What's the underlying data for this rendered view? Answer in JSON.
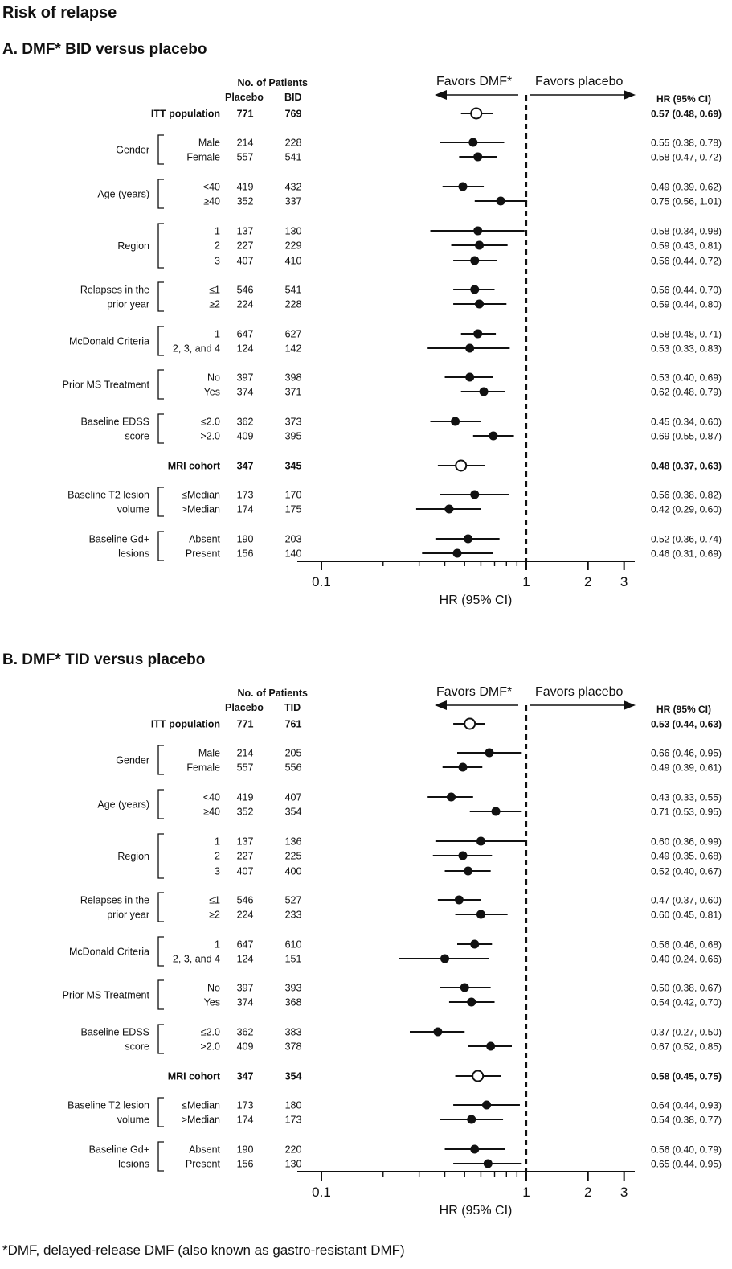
{
  "title": "Risk of relapse",
  "footnote": "*DMF, delayed-release DMF (also known as gastro-resistant DMF)",
  "chart_data": [
    {
      "type": "forest",
      "panel_title": "A. DMF* BID versus placebo",
      "patients_header": "No. of Patients",
      "col_placebo": "Placebo",
      "col_treat": "BID",
      "hr_header": "HR (95% CI)",
      "favors_left": "Favors DMF*",
      "favors_right": "Favors placebo",
      "xlabel": "HR (95% CI)",
      "xscale": "log",
      "xlim": [
        0.1,
        3
      ],
      "xticks": [
        "0.1",
        "1",
        "2",
        "3"
      ],
      "rows": [
        {
          "group": "",
          "label": "ITT population",
          "placebo": "771",
          "treat": "769",
          "hr": 0.57,
          "lo": 0.48,
          "hi": 0.69,
          "hr_text": "0.57 (0.48, 0.69)",
          "open": true,
          "bold": true
        },
        {
          "group": "Gender",
          "label": "Male",
          "placebo": "214",
          "treat": "228",
          "hr": 0.55,
          "lo": 0.38,
          "hi": 0.78,
          "hr_text": "0.55 (0.38, 0.78)"
        },
        {
          "group": "",
          "label": "Female",
          "placebo": "557",
          "treat": "541",
          "hr": 0.58,
          "lo": 0.47,
          "hi": 0.72,
          "hr_text": "0.58 (0.47, 0.72)"
        },
        {
          "group": "Age (years)",
          "label": "<40",
          "placebo": "419",
          "treat": "432",
          "hr": 0.49,
          "lo": 0.39,
          "hi": 0.62,
          "hr_text": "0.49 (0.39, 0.62)"
        },
        {
          "group": "",
          "label": "≥40",
          "placebo": "352",
          "treat": "337",
          "hr": 0.75,
          "lo": 0.56,
          "hi": 1.01,
          "hr_text": "0.75 (0.56, 1.01)"
        },
        {
          "group": "Region",
          "label": "1",
          "placebo": "137",
          "treat": "130",
          "hr": 0.58,
          "lo": 0.34,
          "hi": 0.98,
          "hr_text": "0.58 (0.34, 0.98)"
        },
        {
          "group": "",
          "label": "2",
          "placebo": "227",
          "treat": "229",
          "hr": 0.59,
          "lo": 0.43,
          "hi": 0.81,
          "hr_text": "0.59 (0.43, 0.81)"
        },
        {
          "group": "",
          "label": "3",
          "placebo": "407",
          "treat": "410",
          "hr": 0.56,
          "lo": 0.44,
          "hi": 0.72,
          "hr_text": "0.56 (0.44, 0.72)"
        },
        {
          "group": "Relapses in the|prior year",
          "label": "≤1",
          "placebo": "546",
          "treat": "541",
          "hr": 0.56,
          "lo": 0.44,
          "hi": 0.7,
          "hr_text": "0.56 (0.44, 0.70)"
        },
        {
          "group": "",
          "label": "≥2",
          "placebo": "224",
          "treat": "228",
          "hr": 0.59,
          "lo": 0.44,
          "hi": 0.8,
          "hr_text": "0.59 (0.44, 0.80)"
        },
        {
          "group": "McDonald Criteria",
          "label": "1",
          "placebo": "647",
          "treat": "627",
          "hr": 0.58,
          "lo": 0.48,
          "hi": 0.71,
          "hr_text": "0.58 (0.48, 0.71)"
        },
        {
          "group": "",
          "label": "2, 3, and 4",
          "placebo": "124",
          "treat": "142",
          "hr": 0.53,
          "lo": 0.33,
          "hi": 0.83,
          "hr_text": "0.53 (0.33, 0.83)"
        },
        {
          "group": "Prior MS Treatment",
          "label": "No",
          "placebo": "397",
          "treat": "398",
          "hr": 0.53,
          "lo": 0.4,
          "hi": 0.69,
          "hr_text": "0.53 (0.40, 0.69)"
        },
        {
          "group": "",
          "label": "Yes",
          "placebo": "374",
          "treat": "371",
          "hr": 0.62,
          "lo": 0.48,
          "hi": 0.79,
          "hr_text": "0.62 (0.48, 0.79)"
        },
        {
          "group": "Baseline EDSS|score",
          "label": "≤2.0",
          "placebo": "362",
          "treat": "373",
          "hr": 0.45,
          "lo": 0.34,
          "hi": 0.6,
          "hr_text": "0.45 (0.34, 0.60)"
        },
        {
          "group": "",
          "label": ">2.0",
          "placebo": "409",
          "treat": "395",
          "hr": 0.69,
          "lo": 0.55,
          "hi": 0.87,
          "hr_text": "0.69 (0.55, 0.87)"
        },
        {
          "group": "",
          "label": "MRI cohort",
          "placebo": "347",
          "treat": "345",
          "hr": 0.48,
          "lo": 0.37,
          "hi": 0.63,
          "hr_text": "0.48 (0.37, 0.63)",
          "open": true,
          "bold": true
        },
        {
          "group": "Baseline T2 lesion|volume",
          "label": "≤Median",
          "placebo": "173",
          "treat": "170",
          "hr": 0.56,
          "lo": 0.38,
          "hi": 0.82,
          "hr_text": "0.56 (0.38, 0.82)"
        },
        {
          "group": "",
          "label": ">Median",
          "placebo": "174",
          "treat": "175",
          "hr": 0.42,
          "lo": 0.29,
          "hi": 0.6,
          "hr_text": "0.42 (0.29, 0.60)"
        },
        {
          "group": "Baseline Gd+|lesions",
          "label": "Absent",
          "placebo": "190",
          "treat": "203",
          "hr": 0.52,
          "lo": 0.36,
          "hi": 0.74,
          "hr_text": "0.52 (0.36, 0.74)"
        },
        {
          "group": "",
          "label": "Present",
          "placebo": "156",
          "treat": "140",
          "hr": 0.46,
          "lo": 0.31,
          "hi": 0.69,
          "hr_text": "0.46 (0.31, 0.69)"
        }
      ]
    },
    {
      "type": "forest",
      "panel_title": "B. DMF* TID versus placebo",
      "patients_header": "No. of Patients",
      "col_placebo": "Placebo",
      "col_treat": "TID",
      "hr_header": "HR (95% CI)",
      "favors_left": "Favors DMF*",
      "favors_right": "Favors placebo",
      "xlabel": "HR (95% CI)",
      "xscale": "log",
      "xlim": [
        0.1,
        3
      ],
      "xticks": [
        "0.1",
        "1",
        "2",
        "3"
      ],
      "rows": [
        {
          "group": "",
          "label": "ITT population",
          "placebo": "771",
          "treat": "761",
          "hr": 0.53,
          "lo": 0.44,
          "hi": 0.63,
          "hr_text": "0.53 (0.44, 0.63)",
          "open": true,
          "bold": true
        },
        {
          "group": "Gender",
          "label": "Male",
          "placebo": "214",
          "treat": "205",
          "hr": 0.66,
          "lo": 0.46,
          "hi": 0.95,
          "hr_text": "0.66 (0.46, 0.95)"
        },
        {
          "group": "",
          "label": "Female",
          "placebo": "557",
          "treat": "556",
          "hr": 0.49,
          "lo": 0.39,
          "hi": 0.61,
          "hr_text": "0.49 (0.39, 0.61)"
        },
        {
          "group": "Age (years)",
          "label": "<40",
          "placebo": "419",
          "treat": "407",
          "hr": 0.43,
          "lo": 0.33,
          "hi": 0.55,
          "hr_text": "0.43 (0.33, 0.55)"
        },
        {
          "group": "",
          "label": "≥40",
          "placebo": "352",
          "treat": "354",
          "hr": 0.71,
          "lo": 0.53,
          "hi": 0.95,
          "hr_text": "0.71 (0.53, 0.95)"
        },
        {
          "group": "Region",
          "label": "1",
          "placebo": "137",
          "treat": "136",
          "hr": 0.6,
          "lo": 0.36,
          "hi": 0.99,
          "hr_text": "0.60 (0.36, 0.99)"
        },
        {
          "group": "",
          "label": "2",
          "placebo": "227",
          "treat": "225",
          "hr": 0.49,
          "lo": 0.35,
          "hi": 0.68,
          "hr_text": "0.49 (0.35, 0.68)"
        },
        {
          "group": "",
          "label": "3",
          "placebo": "407",
          "treat": "400",
          "hr": 0.52,
          "lo": 0.4,
          "hi": 0.67,
          "hr_text": "0.52 (0.40, 0.67)"
        },
        {
          "group": "Relapses in the|prior year",
          "label": "≤1",
          "placebo": "546",
          "treat": "527",
          "hr": 0.47,
          "lo": 0.37,
          "hi": 0.6,
          "hr_text": "0.47 (0.37, 0.60)"
        },
        {
          "group": "",
          "label": "≥2",
          "placebo": "224",
          "treat": "233",
          "hr": 0.6,
          "lo": 0.45,
          "hi": 0.81,
          "hr_text": "0.60 (0.45, 0.81)"
        },
        {
          "group": "McDonald Criteria",
          "label": "1",
          "placebo": "647",
          "treat": "610",
          "hr": 0.56,
          "lo": 0.46,
          "hi": 0.68,
          "hr_text": "0.56 (0.46, 0.68)"
        },
        {
          "group": "",
          "label": "2, 3, and 4",
          "placebo": "124",
          "treat": "151",
          "hr": 0.4,
          "lo": 0.24,
          "hi": 0.66,
          "hr_text": "0.40 (0.24, 0.66)"
        },
        {
          "group": "Prior MS Treatment",
          "label": "No",
          "placebo": "397",
          "treat": "393",
          "hr": 0.5,
          "lo": 0.38,
          "hi": 0.67,
          "hr_text": "0.50 (0.38, 0.67)"
        },
        {
          "group": "",
          "label": "Yes",
          "placebo": "374",
          "treat": "368",
          "hr": 0.54,
          "lo": 0.42,
          "hi": 0.7,
          "hr_text": "0.54 (0.42, 0.70)"
        },
        {
          "group": "Baseline EDSS|score",
          "label": "≤2.0",
          "placebo": "362",
          "treat": "383",
          "hr": 0.37,
          "lo": 0.27,
          "hi": 0.5,
          "hr_text": "0.37 (0.27, 0.50)"
        },
        {
          "group": "",
          "label": ">2.0",
          "placebo": "409",
          "treat": "378",
          "hr": 0.67,
          "lo": 0.52,
          "hi": 0.85,
          "hr_text": "0.67 (0.52, 0.85)"
        },
        {
          "group": "",
          "label": "MRI cohort",
          "placebo": "347",
          "treat": "354",
          "hr": 0.58,
          "lo": 0.45,
          "hi": 0.75,
          "hr_text": "0.58 (0.45, 0.75)",
          "open": true,
          "bold": true
        },
        {
          "group": "Baseline T2 lesion|volume",
          "label": "≤Median",
          "placebo": "173",
          "treat": "180",
          "hr": 0.64,
          "lo": 0.44,
          "hi": 0.93,
          "hr_text": "0.64 (0.44, 0.93)"
        },
        {
          "group": "",
          "label": ">Median",
          "placebo": "174",
          "treat": "173",
          "hr": 0.54,
          "lo": 0.38,
          "hi": 0.77,
          "hr_text": "0.54 (0.38, 0.77)"
        },
        {
          "group": "Baseline Gd+|lesions",
          "label": "Absent",
          "placebo": "190",
          "treat": "220",
          "hr": 0.56,
          "lo": 0.4,
          "hi": 0.79,
          "hr_text": "0.56 (0.40, 0.79)"
        },
        {
          "group": "",
          "label": "Present",
          "placebo": "156",
          "treat": "130",
          "hr": 0.65,
          "lo": 0.44,
          "hi": 0.95,
          "hr_text": "0.65 (0.44, 0.95)"
        }
      ]
    }
  ]
}
